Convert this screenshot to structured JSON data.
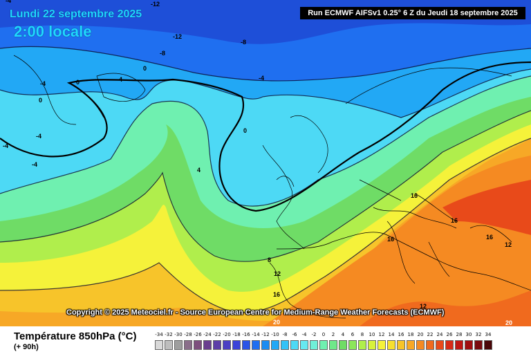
{
  "header": {
    "date": "Lundi 22 septembre 2025",
    "time": "2:00 locale",
    "run": "Run ECMWF AIFSv1 0.25° 6 Z du Jeudi 18 septembre 2025"
  },
  "copyright": "Copyright © 2025 Meteociel.fr - Source European Centre for Medium-Range Weather Forecasts (ECMWF)",
  "legend": {
    "title": "Température 850hPa (°C)",
    "subtitle": "(+ 90h)",
    "labels": [
      "-34",
      "-32",
      "-30",
      "-28",
      "-26",
      "-24",
      "-22",
      "-20",
      "-18",
      "-16",
      "-14",
      "-12",
      "-10",
      "-8",
      "-6",
      "-4",
      "-2",
      "0",
      "2",
      "4",
      "6",
      "8",
      "10",
      "12",
      "14",
      "16",
      "18",
      "20",
      "22",
      "24",
      "26",
      "28",
      "30",
      "32",
      "34"
    ],
    "colors": [
      "#d9d9d9",
      "#bdbdbd",
      "#9e9e9e",
      "#8a6e8a",
      "#7d4f7d",
      "#6a3f8f",
      "#5c3fa8",
      "#4a3fc4",
      "#3a43d9",
      "#2a55e6",
      "#1f6ff0",
      "#1a8cf2",
      "#22a8f5",
      "#33c2f7",
      "#4dd9f5",
      "#66e8f0",
      "#70f0d8",
      "#6ff0b0",
      "#6fe88a",
      "#6fdc66",
      "#8ce65a",
      "#b0ee4c",
      "#d8f23c",
      "#f5f23a",
      "#f7df30",
      "#f7c42a",
      "#f7a826",
      "#f58a22",
      "#f06a1e",
      "#e84a1a",
      "#d82a16",
      "#c01612",
      "#a00e10",
      "#7a0a0e",
      "#4a0608"
    ]
  },
  "contour_labels": [
    "-12",
    "-12",
    "-8",
    "-8",
    "0",
    "-4",
    "-4",
    "4",
    "-4",
    "0",
    "0",
    "-4",
    "-4",
    "-4",
    "0",
    "4",
    "16",
    "16",
    "16",
    "16",
    "12",
    "8",
    "12",
    "16",
    "12",
    "20",
    "20"
  ]
}
